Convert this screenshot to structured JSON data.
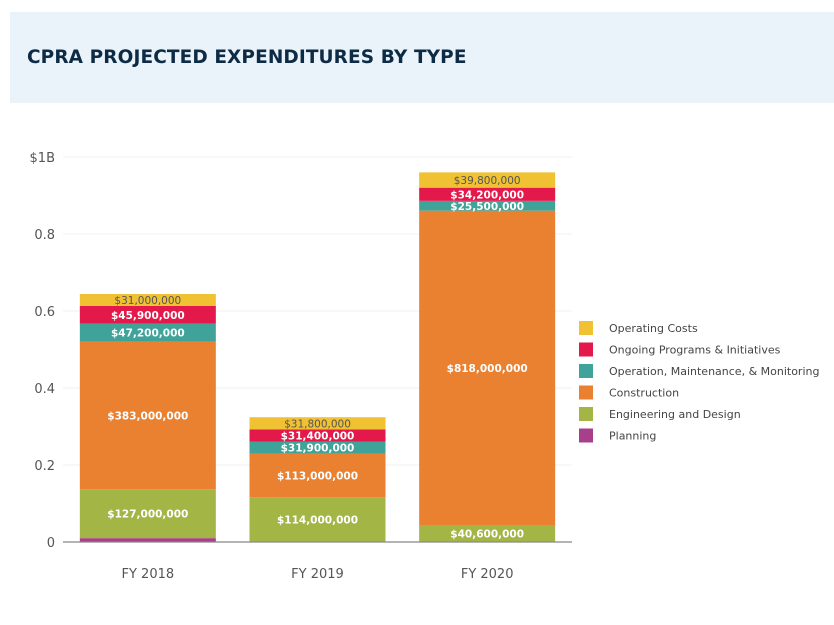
{
  "header": {
    "title": "CPRA PROJECTED EXPENDITURES BY TYPE"
  },
  "chart_data": {
    "type": "bar",
    "stacked": true,
    "title": "CPRA PROJECTED EXPENDITURES BY TYPE",
    "xlabel": "",
    "ylabel": "",
    "categories": [
      "FY 2018",
      "FY 2019",
      "FY 2020"
    ],
    "ylim": [
      0,
      1000000000
    ],
    "yticks": [
      {
        "value": 0,
        "label": "0"
      },
      {
        "value": 200000000,
        "label": "0.2"
      },
      {
        "value": 400000000,
        "label": "0.4"
      },
      {
        "value": 600000000,
        "label": "0.6"
      },
      {
        "value": 800000000,
        "label": "0.8"
      },
      {
        "value": 1000000000,
        "label": "$1B"
      }
    ],
    "grid": true,
    "legend_position": "right",
    "series": [
      {
        "name": "Planning",
        "color": "#a83f8b",
        "label_color": "#ffffff",
        "values": [
          10000000,
          2000000,
          2000000
        ],
        "labels": [
          "",
          "",
          ""
        ]
      },
      {
        "name": "Engineering and Design",
        "color": "#a3b545",
        "label_color": "#ffffff",
        "values": [
          127000000,
          114000000,
          40600000
        ],
        "labels": [
          "$127,000,000",
          "$114,000,000",
          "$40,600,000"
        ]
      },
      {
        "name": "Construction",
        "color": "#e98131",
        "label_color": "#ffffff",
        "values": [
          383000000,
          113000000,
          818000000
        ],
        "labels": [
          "$383,000,000",
          "$113,000,000",
          "$818,000,000"
        ]
      },
      {
        "name": "Operation, Maintenance, & Monitoring",
        "color": "#3fa39a",
        "label_color": "#ffffff",
        "values": [
          47200000,
          31900000,
          25500000
        ],
        "labels": [
          "$47,200,000",
          "$31,900,000",
          "$25,500,000"
        ]
      },
      {
        "name": "Ongoing Programs & Initiatives",
        "color": "#e2194a",
        "label_color": "#ffffff",
        "values": [
          45900000,
          31400000,
          34200000
        ],
        "labels": [
          "$45,900,000",
          "$31,400,000",
          "$34,200,000"
        ]
      },
      {
        "name": "Operating Costs",
        "color": "#f0c132",
        "label_color": "#555555",
        "values": [
          31000000,
          31800000,
          39800000
        ],
        "labels": [
          "$31,000,000",
          "$31,800,000",
          "$39,800,000"
        ]
      }
    ],
    "legend_order": [
      "Operating Costs",
      "Ongoing Programs & Initiatives",
      "Operation, Maintenance, & Monitoring",
      "Construction",
      "Engineering and Design",
      "Planning"
    ]
  }
}
